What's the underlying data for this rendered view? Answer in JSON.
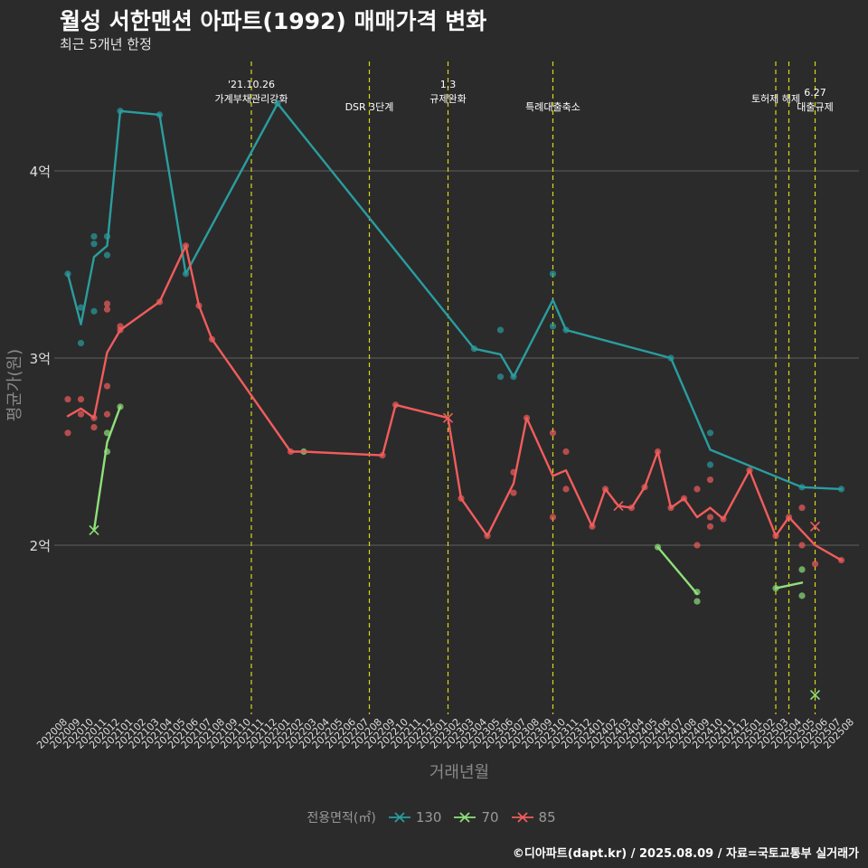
{
  "header": {
    "title": "월성 서한맨션 아파트(1992) 매매가격 변화",
    "subtitle": "최근 5개년 한정"
  },
  "footer": {
    "credit": "©디아파트(dapt.kr) / 2025.08.09 / 자료=국토교통부 실거래가"
  },
  "legend": {
    "title": "전용면적(㎡)",
    "items": [
      {
        "label": "130",
        "color": "#2a9d9f"
      },
      {
        "label": "70",
        "color": "#8fe07a"
      },
      {
        "label": "85",
        "color": "#f25c5c"
      }
    ]
  },
  "chart_data": {
    "type": "line",
    "xlabel": "거래년월",
    "ylabel": "평균가(원)",
    "ylim": [
      1.1,
      4.8
    ],
    "yticks": [
      {
        "value": 2,
        "label": "2억"
      },
      {
        "value": 3,
        "label": "3억"
      },
      {
        "value": 4,
        "label": "4억"
      }
    ],
    "x": [
      "202008",
      "202009",
      "202010",
      "202011",
      "202012",
      "202101",
      "202102",
      "202103",
      "202104",
      "202105",
      "202106",
      "202107",
      "202108",
      "202109",
      "202110",
      "202111",
      "202112",
      "202201",
      "202202",
      "202203",
      "202204",
      "202205",
      "202206",
      "202207",
      "202208",
      "202209",
      "202210",
      "202211",
      "202212",
      "202301",
      "202302",
      "202303",
      "202304",
      "202305",
      "202306",
      "202307",
      "202308",
      "202309",
      "202310",
      "202311",
      "202312",
      "202401",
      "202402",
      "202403",
      "202404",
      "202405",
      "202406",
      "202407",
      "202408",
      "202409",
      "202410",
      "202411",
      "202412",
      "202501",
      "202502",
      "202503",
      "202504",
      "202505",
      "202506",
      "202507",
      "202508"
    ],
    "grid": "horizontal",
    "legend_position": "bottom",
    "events": [
      {
        "x": 14.0,
        "lines": [
          "'21.10.26",
          "가계부채관리강화"
        ],
        "row": 0
      },
      {
        "x": 23.0,
        "lines": [
          "DSR 3단계"
        ],
        "row": 1
      },
      {
        "x": 29.0,
        "lines": [
          "1.3",
          "규제완화"
        ],
        "row": 0
      },
      {
        "x": 37.0,
        "lines": [
          "특례대출축소"
        ],
        "row": 1
      },
      {
        "x": 54.0,
        "lines": [
          "토허제 해제"
        ],
        "row": 0
      },
      {
        "x": 55.0,
        "lines": [
          ""
        ],
        "row": 0
      },
      {
        "x": 57.0,
        "lines": [
          "6.27",
          "대출규제"
        ],
        "row": 1
      }
    ],
    "series": [
      {
        "name": "130",
        "color": "#2a9d9f",
        "line": [
          [
            0,
            3.45
          ],
          [
            1,
            3.18
          ],
          [
            2,
            3.54
          ],
          [
            3,
            3.6
          ],
          [
            4,
            4.32
          ],
          [
            7,
            4.3
          ],
          [
            9,
            3.45
          ],
          [
            16,
            4.36
          ],
          [
            31,
            3.05
          ],
          [
            33,
            3.02
          ],
          [
            34,
            2.9
          ],
          [
            37,
            3.31
          ],
          [
            38,
            3.15
          ],
          [
            46,
            3.0
          ],
          [
            49,
            2.51
          ],
          [
            56,
            2.31
          ],
          [
            59,
            2.3
          ]
        ],
        "points": [
          [
            0,
            3.45
          ],
          [
            1,
            3.27
          ],
          [
            1,
            3.08
          ],
          [
            2,
            3.65
          ],
          [
            2,
            3.61
          ],
          [
            2,
            3.25
          ],
          [
            3,
            3.65
          ],
          [
            3,
            3.55
          ],
          [
            4,
            4.32
          ],
          [
            7,
            4.3
          ],
          [
            9,
            3.45
          ],
          [
            16,
            4.36
          ],
          [
            31,
            3.05
          ],
          [
            33,
            3.15
          ],
          [
            33,
            2.9
          ],
          [
            34,
            2.9
          ],
          [
            37,
            3.45
          ],
          [
            37,
            3.17
          ],
          [
            38,
            3.15
          ],
          [
            46,
            3.0
          ],
          [
            49,
            2.6
          ],
          [
            49,
            2.43
          ],
          [
            56,
            2.31
          ],
          [
            59,
            2.3
          ]
        ],
        "crosses": []
      },
      {
        "name": "70",
        "color": "#8fe07a",
        "line_segments": [
          [
            [
              2,
              2.08
            ],
            [
              3,
              2.55
            ],
            [
              4,
              2.74
            ]
          ],
          [
            [
              45,
              1.99
            ],
            [
              48,
              1.74
            ]
          ],
          [
            [
              54,
              1.77
            ],
            [
              56,
              1.8
            ]
          ]
        ],
        "points": [
          [
            3,
            2.6
          ],
          [
            3,
            2.5
          ],
          [
            4,
            2.74
          ],
          [
            18,
            2.5
          ],
          [
            45,
            1.99
          ],
          [
            48,
            1.75
          ],
          [
            48,
            1.7
          ],
          [
            54,
            1.77
          ],
          [
            56,
            1.87
          ],
          [
            56,
            1.73
          ]
        ],
        "crosses": [
          [
            2,
            2.08
          ],
          [
            57,
            1.2
          ]
        ]
      },
      {
        "name": "85",
        "color": "#f25c5c",
        "line": [
          [
            0,
            2.69
          ],
          [
            1,
            2.73
          ],
          [
            2,
            2.68
          ],
          [
            3,
            3.03
          ],
          [
            4,
            3.15
          ],
          [
            7,
            3.3
          ],
          [
            9,
            3.6
          ],
          [
            10,
            3.28
          ],
          [
            11,
            3.1
          ],
          [
            17,
            2.5
          ],
          [
            18,
            2.5
          ],
          [
            24,
            2.48
          ],
          [
            25,
            2.75
          ],
          [
            29,
            2.68
          ],
          [
            30,
            2.25
          ],
          [
            32,
            2.05
          ],
          [
            34,
            2.33
          ],
          [
            35,
            2.68
          ],
          [
            37,
            2.37
          ],
          [
            38,
            2.4
          ],
          [
            40,
            2.1
          ],
          [
            41,
            2.3
          ],
          [
            42,
            2.21
          ],
          [
            43,
            2.2
          ],
          [
            44,
            2.31
          ],
          [
            45,
            2.5
          ],
          [
            46,
            2.2
          ],
          [
            47,
            2.25
          ],
          [
            48,
            2.15
          ],
          [
            49,
            2.2
          ],
          [
            50,
            2.14
          ],
          [
            52,
            2.4
          ],
          [
            54,
            2.05
          ],
          [
            55,
            2.15
          ],
          [
            57,
            2.0
          ],
          [
            59,
            1.92
          ]
        ],
        "points": [
          [
            0,
            2.78
          ],
          [
            0,
            2.6
          ],
          [
            1,
            2.78
          ],
          [
            1,
            2.7
          ],
          [
            2,
            2.68
          ],
          [
            2,
            2.63
          ],
          [
            3,
            3.29
          ],
          [
            3,
            3.26
          ],
          [
            3,
            2.85
          ],
          [
            3,
            2.7
          ],
          [
            4,
            3.17
          ],
          [
            4,
            3.15
          ],
          [
            7,
            3.3
          ],
          [
            9,
            3.6
          ],
          [
            10,
            3.28
          ],
          [
            11,
            3.1
          ],
          [
            17,
            2.5
          ],
          [
            24,
            2.48
          ],
          [
            25,
            2.75
          ],
          [
            30,
            2.25
          ],
          [
            32,
            2.05
          ],
          [
            34,
            2.39
          ],
          [
            34,
            2.28
          ],
          [
            35,
            2.68
          ],
          [
            37,
            2.6
          ],
          [
            37,
            2.15
          ],
          [
            38,
            2.5
          ],
          [
            38,
            2.3
          ],
          [
            40,
            2.1
          ],
          [
            41,
            2.3
          ],
          [
            43,
            2.2
          ],
          [
            44,
            2.31
          ],
          [
            45,
            2.5
          ],
          [
            46,
            2.2
          ],
          [
            47,
            2.25
          ],
          [
            48,
            2.3
          ],
          [
            48,
            2.0
          ],
          [
            49,
            2.35
          ],
          [
            49,
            2.15
          ],
          [
            49,
            2.1
          ],
          [
            50,
            2.14
          ],
          [
            52,
            2.4
          ],
          [
            54,
            2.05
          ],
          [
            55,
            2.15
          ],
          [
            56,
            2.2
          ],
          [
            56,
            2.0
          ],
          [
            57,
            1.9
          ],
          [
            59,
            1.92
          ]
        ],
        "crosses": [
          [
            29,
            2.68
          ],
          [
            42,
            2.21
          ],
          [
            57,
            2.1
          ]
        ]
      }
    ]
  }
}
